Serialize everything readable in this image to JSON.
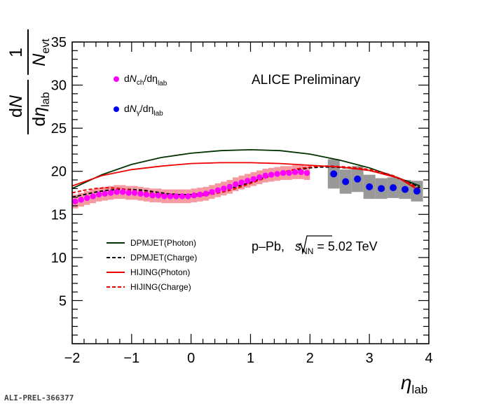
{
  "chart_data": {
    "type": "scatter",
    "annotation": "ALICE Preliminary",
    "system_label": {
      "prefix": "p–Pb, ",
      "root": "s",
      "sub": "NN",
      "suffix": " = 5.02 TeV"
    },
    "footer": "ALI-PREL-366377",
    "xlabel": {
      "main": "η",
      "sub": "lab"
    },
    "ylabel": {
      "one": "1",
      "n": "N",
      "n_sub": "evt",
      "num": "dN",
      "den": "dη",
      "den_sub": "lab"
    },
    "xlim": [
      -2,
      4
    ],
    "ylim": [
      0,
      35
    ],
    "x_ticks": [
      "−2",
      "−1",
      "0",
      "1",
      "2",
      "3",
      "4"
    ],
    "x_tick_values": [
      -2,
      -1,
      0,
      1,
      2,
      3,
      4
    ],
    "y_ticks": [
      "5",
      "10",
      "15",
      "20",
      "25",
      "30",
      "35"
    ],
    "y_tick_values": [
      5,
      10,
      15,
      20,
      25,
      30,
      35
    ],
    "legend_markers": [
      {
        "text_pre": "d",
        "text_var": "N",
        "text_sub": "ch",
        "text_post": "/dη",
        "text_sub2": "lab",
        "color": "#ff00ff"
      },
      {
        "text_pre": "d",
        "text_var": "N",
        "text_sub": "γ",
        "text_post": "/dη",
        "text_sub2": "lab",
        "color": "#0000ee"
      }
    ],
    "legend_models": [
      {
        "name": "DPMJET(Photon)",
        "color": "#003300",
        "dash": false
      },
      {
        "name": "DPMJET(Charge)",
        "color": "#000000",
        "dash": true
      },
      {
        "name": "HIJING(Photon)",
        "color": "#ee0000",
        "dash": false
      },
      {
        "name": "HIJING(Charge)",
        "color": "#ee0000",
        "dash": true
      }
    ],
    "series": [
      {
        "name": "dNch/dηlab",
        "color": "#ff00ff",
        "band_color": "#f59aa0",
        "x": [
          -1.95,
          -1.85,
          -1.75,
          -1.65,
          -1.55,
          -1.45,
          -1.35,
          -1.25,
          -1.15,
          -1.05,
          -0.95,
          -0.85,
          -0.75,
          -0.65,
          -0.55,
          -0.45,
          -0.35,
          -0.25,
          -0.15,
          -0.05,
          0.05,
          0.15,
          0.25,
          0.35,
          0.45,
          0.55,
          0.65,
          0.75,
          0.85,
          0.95,
          1.05,
          1.15,
          1.25,
          1.35,
          1.45,
          1.55,
          1.65,
          1.75,
          1.85,
          1.95
        ],
        "y": [
          16.5,
          16.7,
          16.9,
          17.1,
          17.3,
          17.4,
          17.5,
          17.6,
          17.6,
          17.5,
          17.5,
          17.4,
          17.3,
          17.2,
          17.2,
          17.1,
          17.1,
          17.1,
          17.1,
          17.1,
          17.2,
          17.3,
          17.4,
          17.6,
          17.8,
          18.0,
          18.2,
          18.5,
          18.7,
          18.9,
          19.1,
          19.3,
          19.5,
          19.6,
          19.7,
          19.8,
          19.8,
          19.9,
          19.9,
          19.8
        ],
        "syst": 0.8
      },
      {
        "name": "dNγ/dηlab",
        "color": "#0000ee",
        "band_color": "#999999",
        "x": [
          2.4,
          2.6,
          2.8,
          3.0,
          3.2,
          3.4,
          3.6,
          3.8
        ],
        "y": [
          19.7,
          18.8,
          19.1,
          18.2,
          18.0,
          18.1,
          17.9,
          17.7
        ],
        "syst": [
          1.7,
          1.4,
          1.5,
          1.4,
          1.2,
          1.2,
          1.1,
          1.2
        ]
      }
    ],
    "models": [
      {
        "name": "DPMJET(Photon)",
        "x": [
          -2,
          -1.5,
          -1,
          -0.5,
          0,
          0.5,
          1,
          1.5,
          2,
          2.5,
          3,
          3.5,
          3.85
        ],
        "y": [
          18.0,
          19.6,
          20.8,
          21.6,
          22.1,
          22.4,
          22.5,
          22.4,
          22.0,
          21.3,
          20.4,
          19.2,
          18.3
        ]
      },
      {
        "name": "DPMJET(Charge)",
        "x": [
          -2,
          -1.8,
          -1.6,
          -1.4,
          -1.2,
          -1.0,
          -0.8,
          -0.6,
          -0.4,
          -0.2,
          0,
          0.2,
          0.4,
          0.6,
          0.8,
          1.0,
          1.2,
          1.4,
          1.6,
          1.8,
          2.0,
          2.2,
          2.4,
          2.6,
          2.8,
          3.0,
          3.2,
          3.4,
          3.6,
          3.85
        ],
        "y": [
          17.0,
          17.3,
          17.6,
          17.8,
          17.9,
          17.9,
          17.8,
          17.6,
          17.4,
          17.3,
          17.3,
          17.4,
          17.6,
          17.9,
          18.3,
          18.7,
          19.2,
          19.6,
          20.0,
          20.2,
          20.4,
          20.5,
          20.5,
          20.4,
          20.3,
          20.1,
          19.8,
          19.4,
          18.9,
          18.1
        ]
      },
      {
        "name": "HIJING(Photon)",
        "x": [
          -2,
          -1.5,
          -1,
          -0.5,
          0,
          0.5,
          1,
          1.5,
          2,
          2.5,
          3,
          3.5,
          3.85
        ],
        "y": [
          18.3,
          19.5,
          20.2,
          20.6,
          20.9,
          21.0,
          21.0,
          20.9,
          20.7,
          20.5,
          20.1,
          19.2,
          17.7
        ]
      },
      {
        "name": "HIJING(Charge)",
        "x": [
          -2,
          -1.8,
          -1.6,
          -1.4,
          -1.2,
          -1.0,
          -0.8,
          -0.6,
          -0.4,
          -0.2,
          0,
          0.2,
          0.4,
          0.6,
          0.8,
          1.0,
          1.2,
          1.4,
          1.6,
          1.8,
          2.0,
          2.2,
          2.4,
          2.6,
          2.8,
          3.0,
          3.2,
          3.4,
          3.6,
          3.85
        ],
        "y": [
          17.5,
          17.8,
          18.0,
          18.1,
          18.0,
          17.8,
          17.6,
          17.4,
          17.2,
          17.1,
          17.1,
          17.2,
          17.4,
          17.7,
          18.1,
          18.6,
          19.1,
          19.6,
          20.0,
          20.3,
          20.5,
          20.6,
          20.6,
          20.5,
          20.4,
          20.2,
          19.9,
          19.5,
          18.9,
          17.9
        ]
      }
    ]
  }
}
